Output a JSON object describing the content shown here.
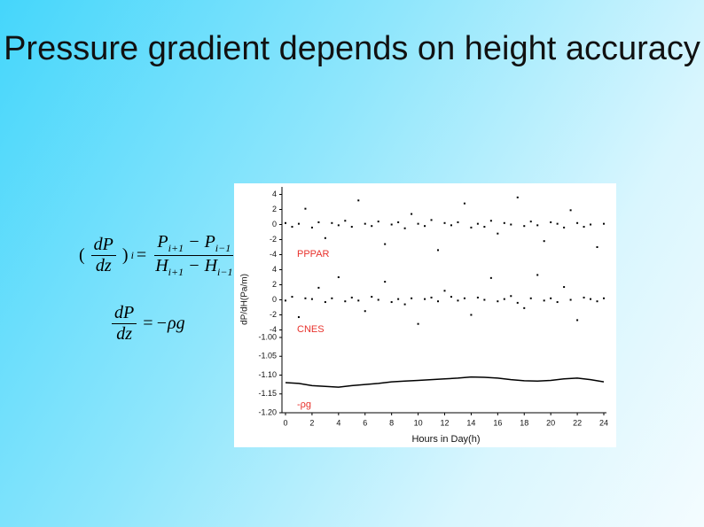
{
  "title": "Pressure gradient depends on height accuracy",
  "equations": [
    {
      "open": "(",
      "lhs_num": "dP",
      "lhs_den": "dz",
      "close": ")",
      "lhs_sub": "i",
      "eq": "=",
      "rhs_num": [
        "P",
        "i+1",
        "− P",
        "i−1"
      ],
      "rhs_den": [
        "H",
        "i+1",
        "− H",
        "i−1"
      ]
    },
    {
      "lhs_num": "dP",
      "lhs_den": "dz",
      "eq": "=",
      "rhs": "−ρg"
    }
  ],
  "chart_data": [
    {
      "type": "scatter",
      "annotation": "PPPAR",
      "annotation_color": "#e8322c",
      "color": "#000000",
      "x": [
        0,
        0.5,
        1,
        1.5,
        2,
        2.5,
        3,
        3.5,
        4,
        4.5,
        5,
        5.5,
        6,
        6.5,
        7,
        7.5,
        8,
        8.5,
        9,
        9.5,
        10,
        10.5,
        11,
        11.5,
        12,
        12.5,
        13,
        13.5,
        14,
        14.5,
        15,
        15.5,
        16,
        16.5,
        17,
        17.5,
        18,
        18.5,
        19,
        19.5,
        20,
        20.5,
        21,
        21.5,
        22,
        22.5,
        23,
        23.5,
        24
      ],
      "values": [
        0.2,
        -0.3,
        0.1,
        2.1,
        -0.4,
        0.3,
        -1.8,
        0.2,
        -0.1,
        0.5,
        -0.3,
        3.2,
        0.1,
        -0.2,
        0.4,
        -2.6,
        0.0,
        0.3,
        -0.5,
        1.4,
        0.1,
        -0.2,
        0.6,
        -3.4,
        0.2,
        -0.1,
        0.3,
        2.8,
        -0.4,
        0.1,
        -0.3,
        0.5,
        -1.2,
        0.2,
        0.0,
        3.6,
        -0.2,
        0.4,
        -0.1,
        -2.2,
        0.3,
        0.1,
        -0.4,
        1.9,
        0.2,
        -0.3,
        0.0,
        -3.0,
        0.1
      ],
      "xlim": [
        0,
        24
      ],
      "ylim": [
        -5,
        5
      ],
      "yticks": [
        -4,
        -2,
        0,
        2,
        4
      ]
    },
    {
      "type": "scatter",
      "annotation": "CNES",
      "annotation_color": "#e8322c",
      "color": "#000000",
      "ylabel": "dP/dH(Pa/m)",
      "x": [
        0,
        0.5,
        1,
        1.5,
        2,
        2.5,
        3,
        3.5,
        4,
        4.5,
        5,
        5.5,
        6,
        6.5,
        7,
        7.5,
        8,
        8.5,
        9,
        9.5,
        10,
        10.5,
        11,
        11.5,
        12,
        12.5,
        13,
        13.5,
        14,
        14.5,
        15,
        15.5,
        16,
        16.5,
        17,
        17.5,
        18,
        18.5,
        19,
        19.5,
        20,
        20.5,
        21,
        21.5,
        22,
        22.5,
        23,
        23.5,
        24
      ],
      "values": [
        -0.1,
        0.4,
        -2.3,
        0.2,
        0.1,
        1.6,
        -0.3,
        0.2,
        3.0,
        -0.2,
        0.3,
        -0.1,
        -1.5,
        0.4,
        0.0,
        2.4,
        -0.3,
        0.1,
        -0.6,
        0.2,
        -3.2,
        0.1,
        0.3,
        -0.2,
        1.2,
        0.4,
        -0.1,
        0.2,
        -2.0,
        0.3,
        0.0,
        2.9,
        -0.2,
        0.1,
        0.5,
        -0.4,
        -1.1,
        0.2,
        3.3,
        -0.1,
        0.2,
        -0.3,
        1.7,
        0.0,
        -2.7,
        0.3,
        0.1,
        -0.2,
        0.2
      ],
      "xlim": [
        0,
        24
      ],
      "ylim": [
        -5,
        5
      ],
      "yticks": [
        -4,
        -2,
        0,
        2,
        4
      ]
    },
    {
      "type": "line",
      "annotation": "-ρg",
      "annotation_color": "#e8322c",
      "color": "#000000",
      "xlabel": "Hours in Day(h)",
      "x": [
        0,
        1,
        2,
        3,
        4,
        5,
        6,
        7,
        8,
        9,
        10,
        11,
        12,
        13,
        14,
        15,
        16,
        17,
        18,
        19,
        20,
        21,
        22,
        23,
        24
      ],
      "values": [
        -1.12,
        -1.122,
        -1.128,
        -1.13,
        -1.132,
        -1.128,
        -1.125,
        -1.122,
        -1.118,
        -1.116,
        -1.114,
        -1.112,
        -1.11,
        -1.108,
        -1.105,
        -1.106,
        -1.108,
        -1.112,
        -1.115,
        -1.116,
        -1.114,
        -1.11,
        -1.108,
        -1.112,
        -1.118
      ],
      "xlim": [
        0,
        24
      ],
      "ylim": [
        -1.2,
        -1.0
      ],
      "yticks": [
        {
          "value": -1.2,
          "label": "-1.20"
        },
        {
          "value": -1.15,
          "label": "-1.15"
        },
        {
          "value": -1.1,
          "label": "-1.10"
        },
        {
          "value": -1.05,
          "label": "-1.05"
        },
        {
          "value": -1.0,
          "label": "-1.00"
        }
      ],
      "xticks": [
        0,
        2,
        4,
        6,
        8,
        10,
        12,
        14,
        16,
        18,
        20,
        22,
        24
      ]
    }
  ]
}
